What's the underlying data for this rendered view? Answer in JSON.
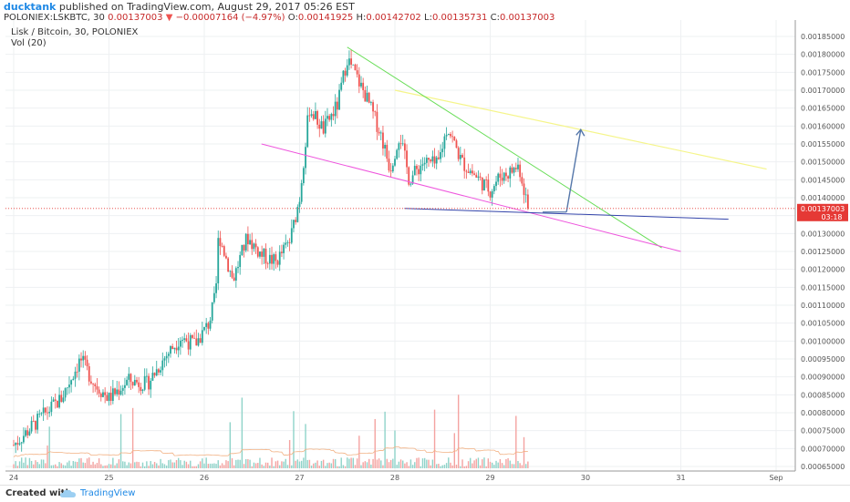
{
  "header": {
    "author": "ducktank",
    "text": "published on TradingView.com, August 29, 2017 05:26 EST"
  },
  "symbol_line": {
    "symbol": "POLONIEX:LSKBTC, 30",
    "last": "0.00137003",
    "change": "−0.00007164 (−4.97%)",
    "o_label": "O:",
    "o": "0.00141925",
    "h_label": "H:",
    "h": "0.00142702",
    "l_label": "L:",
    "l": "0.00135731",
    "c_label": "C:",
    "c": "0.00137003"
  },
  "legend": {
    "title": "Lisk / Bitcoin, 30, POLONIEX",
    "volume": "Vol (20)"
  },
  "price_tag": {
    "label": "0.00137003",
    "countdown": "03:18"
  },
  "footer": {
    "created": "Created with",
    "brand": "TradingView"
  },
  "colors": {
    "up": "#26a69a",
    "down": "#ef5350",
    "wedge_upper": "#66dd55",
    "wedge_lower": "#ee55dd",
    "resistance": "#f5f58a",
    "support": "#3344aa",
    "arrow": "#5577aa",
    "price_line": "#e53935"
  },
  "chart_data": {
    "type": "candlestick",
    "price_axis": {
      "min": 0.00065,
      "max": 0.00185,
      "step": 5e-05,
      "ticks": [
        "0.00185000",
        "0.00180000",
        "0.00175000",
        "0.00170000",
        "0.00165000",
        "0.00160000",
        "0.00155000",
        "0.00150000",
        "0.00145000",
        "0.00140000",
        "0.00135000",
        "0.00130000",
        "0.00125000",
        "0.00120000",
        "0.00115000",
        "0.00110000",
        "0.00105000",
        "0.00100000",
        "0.00095000",
        "0.00090000",
        "0.00085000",
        "0.00080000",
        "0.00075000",
        "0.00070000",
        "0.00065000"
      ]
    },
    "date_axis": {
      "ticks": [
        "24",
        "25",
        "26",
        "27",
        "28",
        "29",
        "30",
        "31",
        "Sep"
      ]
    },
    "last_price": 0.00137003,
    "price_path": [
      [
        24.0,
        0.00071
      ],
      [
        24.3,
        0.00079
      ],
      [
        24.5,
        0.00084
      ],
      [
        24.7,
        0.00095
      ],
      [
        24.85,
        0.00088
      ],
      [
        25.0,
        0.00084
      ],
      [
        25.2,
        0.00089
      ],
      [
        25.4,
        0.00088
      ],
      [
        25.6,
        0.00096
      ],
      [
        25.75,
        0.00101
      ],
      [
        25.9,
        0.00099
      ],
      [
        26.05,
        0.00105
      ],
      [
        26.12,
        0.00113
      ],
      [
        26.15,
        0.0013
      ],
      [
        26.3,
        0.00117
      ],
      [
        26.45,
        0.00129
      ],
      [
        26.6,
        0.00124
      ],
      [
        26.75,
        0.00122
      ],
      [
        26.9,
        0.00128
      ],
      [
        27.0,
        0.0014
      ],
      [
        27.1,
        0.00165
      ],
      [
        27.25,
        0.00159
      ],
      [
        27.4,
        0.00166
      ],
      [
        27.5,
        0.00179
      ],
      [
        27.7,
        0.00168
      ],
      [
        27.85,
        0.00158
      ],
      [
        27.95,
        0.00148
      ],
      [
        28.05,
        0.00158
      ],
      [
        28.15,
        0.00145
      ],
      [
        28.3,
        0.0015
      ],
      [
        28.45,
        0.00149
      ],
      [
        28.55,
        0.0016
      ],
      [
        28.7,
        0.0015
      ],
      [
        28.85,
        0.00146
      ],
      [
        29.0,
        0.00142
      ],
      [
        29.1,
        0.00146
      ],
      [
        29.2,
        0.00147
      ],
      [
        29.3,
        0.00149
      ],
      [
        29.4,
        0.00137
      ]
    ],
    "drawings": {
      "wedge_upper": [
        [
          27.5,
          0.00182
        ],
        [
          30.8,
          0.00126
        ]
      ],
      "wedge_lower": [
        [
          26.6,
          0.00155
        ],
        [
          31.0,
          0.00125
        ]
      ],
      "resistance": [
        [
          28.0,
          0.0017
        ],
        [
          31.9,
          0.00148
        ]
      ],
      "support": [
        [
          28.1,
          0.00137
        ],
        [
          31.5,
          0.00134
        ]
      ],
      "arrow": [
        [
          29.8,
          0.00136
        ],
        [
          29.95,
          0.00159
        ]
      ]
    },
    "volume_series": "Vol (20)"
  }
}
